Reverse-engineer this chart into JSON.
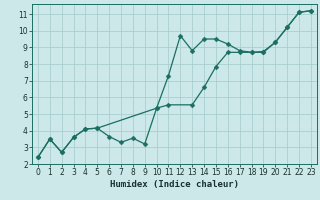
{
  "xlabel": "Humidex (Indice chaleur)",
  "bg_color": "#cce8e8",
  "grid_color": "#aacece",
  "line_color": "#1a6e62",
  "xlim": [
    -0.5,
    23.5
  ],
  "ylim": [
    2.0,
    11.6
  ],
  "xticks": [
    0,
    1,
    2,
    3,
    4,
    5,
    6,
    7,
    8,
    9,
    10,
    11,
    12,
    13,
    14,
    15,
    16,
    17,
    18,
    19,
    20,
    21,
    22,
    23
  ],
  "yticks": [
    2,
    3,
    4,
    5,
    6,
    7,
    8,
    9,
    10,
    11
  ],
  "line1_x": [
    0,
    1,
    2,
    3,
    4,
    5,
    6,
    7,
    8,
    9,
    10,
    11,
    12,
    13,
    14,
    15,
    16,
    17,
    18,
    19,
    20,
    21,
    22,
    23
  ],
  "line1_y": [
    2.4,
    3.5,
    2.7,
    3.6,
    4.1,
    4.15,
    3.65,
    3.3,
    3.55,
    3.2,
    5.35,
    7.3,
    9.7,
    8.8,
    9.5,
    9.5,
    9.2,
    8.8,
    8.7,
    8.75,
    9.3,
    10.2,
    11.1,
    11.2
  ],
  "line2_x": [
    0,
    1,
    2,
    3,
    4,
    5,
    10,
    11,
    13,
    14,
    15,
    16,
    17,
    18,
    19,
    20,
    21,
    22,
    23
  ],
  "line2_y": [
    2.4,
    3.5,
    2.7,
    3.6,
    4.1,
    4.15,
    5.35,
    5.55,
    5.55,
    6.6,
    7.85,
    8.7,
    8.7,
    8.7,
    8.7,
    9.3,
    10.2,
    11.1,
    11.2
  ],
  "tick_fontsize": 5.5,
  "xlabel_fontsize": 6.5,
  "marker_size": 2.5,
  "line_width": 0.9
}
